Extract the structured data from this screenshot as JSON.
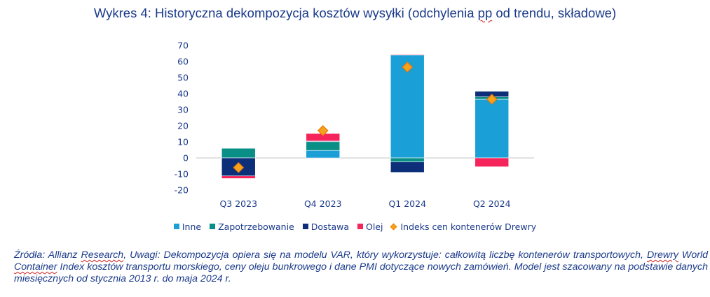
{
  "title": {
    "before": "Wykres 4: Historyczna dekompozycja kosztów wysyłki (odchylenia ",
    "marked": "pp",
    "after": " od trendu, składowe)"
  },
  "chart_data": {
    "type": "bar",
    "stacked": true,
    "title": "Wykres 4: Historyczna dekompozycja kosztów wysyłki (odchylenia pp od trendu, składowe)",
    "xlabel": "",
    "ylabel": "",
    "ylim": [
      -20,
      70
    ],
    "yticks": [
      70,
      60,
      50,
      40,
      30,
      20,
      10,
      0,
      -10,
      -20
    ],
    "grid": false,
    "legend_position": "bottom",
    "categories": [
      "Q3 2023",
      "Q4 2023",
      "Q1 2024",
      "Q2 2024"
    ],
    "series": [
      {
        "name": "Inne",
        "color": "#1a9fd6",
        "values": [
          0,
          4.7,
          64.0,
          36.5
        ]
      },
      {
        "name": "Zapotrzebowanie",
        "color": "#0a8f86",
        "values": [
          6.0,
          5.4,
          -2.5,
          1.5
        ]
      },
      {
        "name": "Dostawa",
        "color": "#0d2f7a",
        "values": [
          -11.2,
          0.4,
          -6.5,
          3.5
        ]
      },
      {
        "name": "Olej",
        "color": "#f5245b",
        "values": [
          -1.6,
          4.7,
          0.4,
          -5.5
        ]
      }
    ],
    "markers": {
      "name": "Indeks cen kontenerów Drewry",
      "color": "#f7a21b",
      "edge_color": "#e8780a",
      "values": [
        -6.0,
        17.0,
        56.5,
        36.5
      ]
    }
  },
  "legend": {
    "items": [
      {
        "label": "Inne",
        "color": "#1a9fd6",
        "shape": "square"
      },
      {
        "label": "Zapotrzebowanie",
        "color": "#0a8f86",
        "shape": "square"
      },
      {
        "label": "Dostawa",
        "color": "#0d2f7a",
        "shape": "square"
      },
      {
        "label": "Olej",
        "color": "#f5245b",
        "shape": "square"
      },
      {
        "label": "Indeks cen kontenerów Drewry",
        "color": "#f7a21b",
        "shape": "diamond"
      }
    ]
  },
  "note": {
    "p1": "Źródła: Allianz ",
    "w1": "Research",
    "p2": ", Uwagi: Dekompozycja opiera się na modelu VAR, który wykorzystuje: całkowitą liczbę kontenerów transportowych, ",
    "w2": "Drewry",
    "p3": " World ",
    "w3": "Container",
    "p4": " Index kosztów transportu morskiego, ceny oleju bunkrowego i dane PMI dotyczące nowych zamówień. Model jest szacowany na podstawie danych miesięcznych od stycznia 2013 r. do maja 2024 r."
  }
}
